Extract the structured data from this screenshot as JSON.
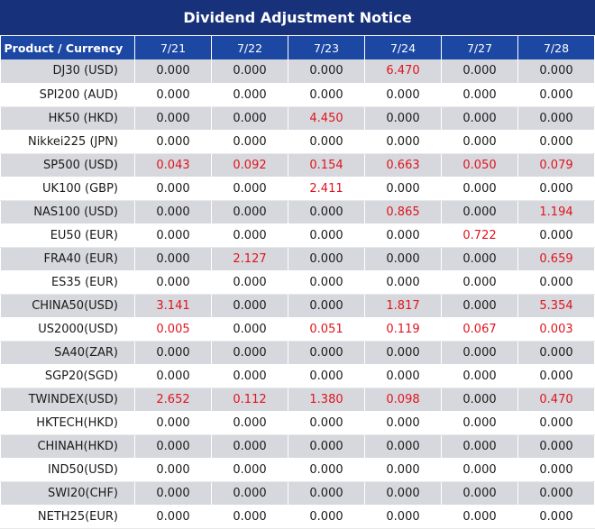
{
  "title": "Dividend Adjustment Notice",
  "columns": {
    "product": "Product / Currency",
    "dates": [
      "7/21",
      "7/22",
      "7/23",
      "7/24",
      "7/27",
      "7/28"
    ]
  },
  "rows": [
    {
      "product": "DJ30 (USD)",
      "values": [
        "0.000",
        "0.000",
        "0.000",
        "6.470",
        "0.000",
        "0.000"
      ]
    },
    {
      "product": "SPI200 (AUD)",
      "values": [
        "0.000",
        "0.000",
        "0.000",
        "0.000",
        "0.000",
        "0.000"
      ]
    },
    {
      "product": "HK50 (HKD)",
      "values": [
        "0.000",
        "0.000",
        "4.450",
        "0.000",
        "0.000",
        "0.000"
      ]
    },
    {
      "product": "Nikkei225 (JPN)",
      "values": [
        "0.000",
        "0.000",
        "0.000",
        "0.000",
        "0.000",
        "0.000"
      ]
    },
    {
      "product": "SP500 (USD)",
      "values": [
        "0.043",
        "0.092",
        "0.154",
        "0.663",
        "0.050",
        "0.079"
      ]
    },
    {
      "product": "UK100 (GBP)",
      "values": [
        "0.000",
        "0.000",
        "2.411",
        "0.000",
        "0.000",
        "0.000"
      ]
    },
    {
      "product": "NAS100 (USD)",
      "values": [
        "0.000",
        "0.000",
        "0.000",
        "0.865",
        "0.000",
        "1.194"
      ]
    },
    {
      "product": "EU50 (EUR)",
      "values": [
        "0.000",
        "0.000",
        "0.000",
        "0.000",
        "0.722",
        "0.000"
      ]
    },
    {
      "product": "FRA40 (EUR)",
      "values": [
        "0.000",
        "2.127",
        "0.000",
        "0.000",
        "0.000",
        "0.659"
      ]
    },
    {
      "product": "ES35 (EUR)",
      "values": [
        "0.000",
        "0.000",
        "0.000",
        "0.000",
        "0.000",
        "0.000"
      ]
    },
    {
      "product": "CHINA50(USD)",
      "values": [
        "3.141",
        "0.000",
        "0.000",
        "1.817",
        "0.000",
        "5.354"
      ]
    },
    {
      "product": "US2000(USD)",
      "values": [
        "0.005",
        "0.000",
        "0.051",
        "0.119",
        "0.067",
        "0.003"
      ]
    },
    {
      "product": "SA40(ZAR)",
      "values": [
        "0.000",
        "0.000",
        "0.000",
        "0.000",
        "0.000",
        "0.000"
      ]
    },
    {
      "product": "SGP20(SGD)",
      "values": [
        "0.000",
        "0.000",
        "0.000",
        "0.000",
        "0.000",
        "0.000"
      ]
    },
    {
      "product": "TWINDEX(USD)",
      "values": [
        "2.652",
        "0.112",
        "1.380",
        "0.098",
        "0.000",
        "0.470"
      ]
    },
    {
      "product": "HKTECH(HKD)",
      "values": [
        "0.000",
        "0.000",
        "0.000",
        "0.000",
        "0.000",
        "0.000"
      ]
    },
    {
      "product": "CHINAH(HKD)",
      "values": [
        "0.000",
        "0.000",
        "0.000",
        "0.000",
        "0.000",
        "0.000"
      ]
    },
    {
      "product": "IND50(USD)",
      "values": [
        "0.000",
        "0.000",
        "0.000",
        "0.000",
        "0.000",
        "0.000"
      ]
    },
    {
      "product": "SWI20(CHF)",
      "values": [
        "0.000",
        "0.000",
        "0.000",
        "0.000",
        "0.000",
        "0.000"
      ]
    },
    {
      "product": "NETH25(EUR)",
      "values": [
        "0.000",
        "0.000",
        "0.000",
        "0.000",
        "0.000",
        "0.000"
      ]
    }
  ],
  "colors": {
    "title_bg": "#17317a",
    "header_bg": "#1c48a4",
    "shaded_row": "#d6d8dd",
    "nonzero_text": "#e0141e"
  }
}
